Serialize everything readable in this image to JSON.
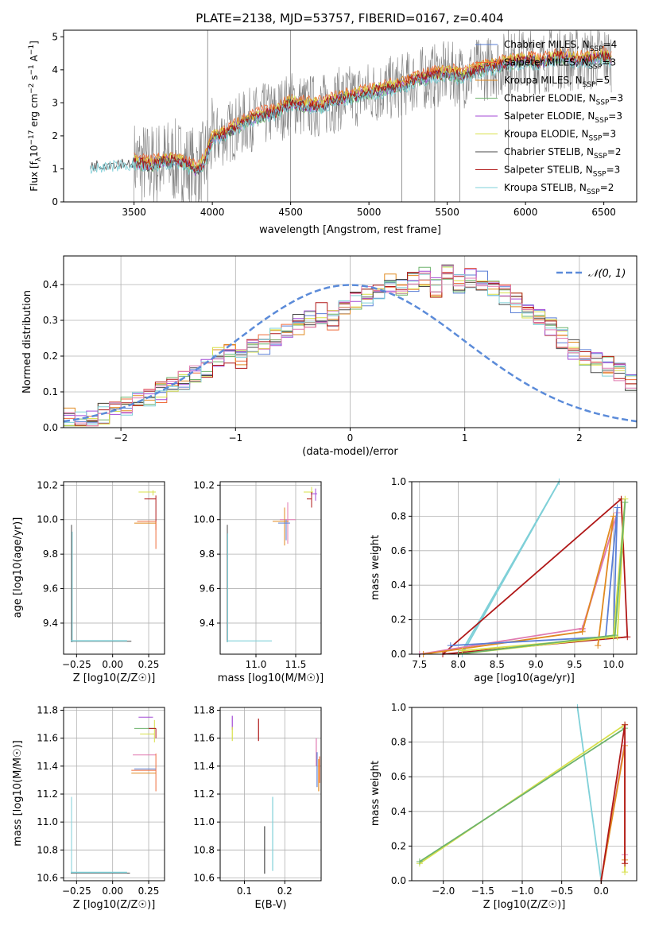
{
  "title": "PLATE=2138, MJD=53757, FIBERID=0167, z=0.404",
  "colors": {
    "chabrier_miles": "#5a7fd6",
    "salpeter_miles": "#ef6b3a",
    "kroupa_miles": "#e08a20",
    "chabrier_elodie": "#6db36b",
    "salpeter_elodie": "#a34ad6",
    "kroupa_elodie": "#d8e04a",
    "chabrier_stelib": "#4a4a4a",
    "salpeter_stelib": "#b01818",
    "kroupa_stelib": "#7fd0d8",
    "data": "#808080",
    "normal": "#5b8bd9",
    "pink": "#e07ab0"
  },
  "chart_data": [
    {
      "id": "spectrum",
      "type": "line",
      "xlabel": "wavelength [Angstrom, rest frame]",
      "ylabel": "Flux [f_λ 10^-17 erg cm^-2 s^-1 A^-1]",
      "ylabel_main": "Flux [f",
      "ylabel_sub": "λ",
      "ylabel_rest": "10",
      "ylabel_exp1": "−17",
      "ylabel_unit": " erg cm",
      "ylabel_exp2": "−2",
      "ylabel_s": " s",
      "ylabel_exp3": "−1",
      "ylabel_A": " A",
      "ylabel_exp4": "−1",
      "ylabel_close": "]",
      "xlim": [
        3050,
        6710
      ],
      "ylim": [
        0,
        5.2
      ],
      "xticks": [
        "3500",
        "4000",
        "4500",
        "5000",
        "5500",
        "6000",
        "6500"
      ],
      "yticks": [
        "0",
        "1",
        "2",
        "3",
        "4",
        "5"
      ],
      "legend_position": "top-right",
      "legend": [
        {
          "prefix": "Chabrier MILES, N",
          "sub": "SSP",
          "suffix": "=4",
          "color": "#5a7fd6"
        },
        {
          "prefix": "Salpeter MILES, N",
          "sub": "SSP",
          "suffix": "=3",
          "color": "#ef6b3a"
        },
        {
          "prefix": "Kroupa MILES, N",
          "sub": "SSP",
          "suffix": "=5",
          "color": "#e08a20"
        },
        {
          "prefix": "Chabrier ELODIE, N",
          "sub": "SSP",
          "suffix": "=3",
          "color": "#6db36b"
        },
        {
          "prefix": "Salpeter ELODIE, N",
          "sub": "SSP",
          "suffix": "=3",
          "color": "#a34ad6"
        },
        {
          "prefix": "Kroupa ELODIE, N",
          "sub": "SSP",
          "suffix": "=3",
          "color": "#d8e04a"
        },
        {
          "prefix": "Chabrier STELIB, N",
          "sub": "SSP",
          "suffix": "=2",
          "color": "#4a4a4a"
        },
        {
          "prefix": "Salpeter STELIB, N",
          "sub": "SSP",
          "suffix": "=3",
          "color": "#b01818"
        },
        {
          "prefix": "Kroupa STELIB, N",
          "sub": "SSP",
          "suffix": "=2",
          "color": "#7fd0d8"
        }
      ],
      "model_x": [
        3220,
        3300,
        3400,
        3500,
        3600,
        3700,
        3800,
        3900,
        3950,
        4000,
        4100,
        4200,
        4300,
        4400,
        4500,
        4600,
        4700,
        4800,
        4900,
        5000,
        5100,
        5200,
        5300,
        5400,
        5500,
        5600,
        5700,
        5800,
        5900,
        6000,
        6100,
        6200,
        6300,
        6400,
        6500,
        6550
      ],
      "model_y": [
        1.1,
        1.15,
        1.2,
        1.2,
        1.1,
        1.25,
        1.2,
        0.95,
        1.2,
        1.9,
        2.1,
        2.4,
        2.6,
        2.7,
        3.0,
        2.9,
        2.9,
        3.1,
        3.2,
        3.3,
        3.4,
        3.5,
        3.7,
        3.8,
        3.9,
        3.8,
        4.0,
        4.1,
        4.2,
        4.3,
        4.2,
        4.4,
        4.3,
        4.3,
        4.4,
        4.3
      ],
      "data_x_range": [
        3500,
        6550
      ],
      "data_spikes": [
        {
          "x": 3970,
          "top": 5.2,
          "bottom": 0
        },
        {
          "x": 4500,
          "top": 5.2,
          "bottom": 0
        },
        {
          "x": 5210,
          "top": 4.0,
          "bottom": 0
        },
        {
          "x": 5420,
          "top": 3.5,
          "bottom": 0
        },
        {
          "x": 5580,
          "top": 4.2,
          "bottom": 0
        },
        {
          "x": 5890,
          "top": 5.2,
          "bottom": 1.0
        }
      ]
    },
    {
      "id": "residuals",
      "type": "area",
      "xlabel": "(data-model)/error",
      "ylabel": "Normed distribution",
      "xlim": [
        -2.5,
        2.5
      ],
      "ylim": [
        0,
        0.48
      ],
      "xticks": [
        "−2",
        "−1",
        "0",
        "1",
        "2"
      ],
      "xtick_values": [
        -2,
        -1,
        0,
        1,
        2
      ],
      "yticks": [
        "0.0",
        "0.1",
        "0.2",
        "0.3",
        "0.4"
      ],
      "ytick_values": [
        0,
        0.1,
        0.2,
        0.3,
        0.4
      ],
      "legend_position": "top-right",
      "normal_label": "𝒩(0, 1)",
      "bin_edges_start": -2.5,
      "bin_width": 0.1,
      "base_hist": [
        0.03,
        0.02,
        0.025,
        0.04,
        0.045,
        0.06,
        0.07,
        0.085,
        0.1,
        0.12,
        0.13,
        0.15,
        0.17,
        0.2,
        0.21,
        0.19,
        0.22,
        0.23,
        0.25,
        0.27,
        0.29,
        0.31,
        0.32,
        0.3,
        0.33,
        0.36,
        0.37,
        0.38,
        0.4,
        0.4,
        0.41,
        0.42,
        0.39,
        0.43,
        0.4,
        0.42,
        0.41,
        0.38,
        0.37,
        0.35,
        0.33,
        0.31,
        0.28,
        0.25,
        0.22,
        0.2,
        0.18,
        0.17,
        0.15,
        0.13
      ]
    },
    {
      "id": "age_vs_Z",
      "type": "scatter",
      "xlabel": "Z [log10(Z/Z☉)]",
      "ylabel": "age [log10(age/yr)]",
      "xlim": [
        -0.34,
        0.36
      ],
      "ylim": [
        9.22,
        10.22
      ],
      "xticks": [
        "−0.25",
        "0.00",
        "0.25"
      ],
      "xtick_values": [
        -0.25,
        0,
        0.25
      ],
      "yticks": [
        "9.4",
        "9.6",
        "9.8",
        "10.0",
        "10.2"
      ],
      "ytick_values": [
        9.4,
        9.6,
        9.8,
        10.0,
        10.2
      ]
    },
    {
      "id": "age_vs_mass",
      "type": "scatter",
      "xlabel": "mass [log10(M/M☉)]",
      "ylabel": "",
      "xlim": [
        10.55,
        11.82
      ],
      "ylim": [
        9.22,
        10.22
      ],
      "xticks": [
        "11.0",
        "11.5"
      ],
      "xtick_values": [
        11.0,
        11.5
      ],
      "yticks": [
        "9.4",
        "9.6",
        "9.8",
        "10.0",
        "10.2"
      ],
      "ytick_values": [
        9.4,
        9.6,
        9.8,
        10.0,
        10.2
      ]
    },
    {
      "id": "weight_vs_age",
      "type": "line",
      "xlabel": "age [log10(age/yr)]",
      "ylabel": "mass weight",
      "xlim": [
        7.4,
        10.3
      ],
      "ylim": [
        0,
        1.0
      ],
      "xticks": [
        "7.5",
        "8.0",
        "8.5",
        "9.0",
        "9.5",
        "10.0"
      ],
      "xtick_values": [
        7.5,
        8.0,
        8.5,
        9.0,
        9.5,
        10.0
      ],
      "yticks": [
        "0.0",
        "0.2",
        "0.4",
        "0.6",
        "0.8",
        "1.0"
      ],
      "ytick_values": [
        0,
        0.2,
        0.4,
        0.6,
        0.8,
        1.0
      ],
      "series": [
        {
          "color": "#7fd0d8",
          "points": [
            [
              8.05,
              0.0
            ],
            [
              9.3,
              1.0
            ],
            [
              8.05,
              0.02
            ]
          ]
        },
        {
          "color": "#b01818",
          "points": [
            [
              7.8,
              0.0
            ],
            [
              10.1,
              0.9
            ],
            [
              10.18,
              0.1
            ],
            [
              7.8,
              0.0
            ]
          ]
        },
        {
          "color": "#e07ab0",
          "points": [
            [
              7.5,
              0.0
            ],
            [
              9.6,
              0.15
            ],
            [
              10.05,
              0.82
            ],
            [
              9.6,
              0.14
            ]
          ]
        },
        {
          "color": "#e08a20",
          "points": [
            [
              7.55,
              0.0
            ],
            [
              9.6,
              0.13
            ],
            [
              10.0,
              0.8
            ],
            [
              9.8,
              0.05
            ]
          ]
        },
        {
          "color": "#5a7fd6",
          "points": [
            [
              7.9,
              0.05
            ],
            [
              9.9,
              0.1
            ],
            [
              10.05,
              0.85
            ],
            [
              10.0,
              0.1
            ]
          ]
        },
        {
          "color": "#d8e04a",
          "points": [
            [
              8.0,
              0.0
            ],
            [
              10.0,
              0.1
            ],
            [
              10.15,
              0.9
            ],
            [
              10.05,
              0.1
            ],
            [
              8.05,
              0.02
            ]
          ]
        },
        {
          "color": "#6db36b",
          "points": [
            [
              8.0,
              0.0
            ],
            [
              10.02,
              0.11
            ],
            [
              10.15,
              0.88
            ]
          ]
        }
      ]
    },
    {
      "id": "mass_vs_Z",
      "type": "scatter",
      "xlabel": "Z [log10(Z/Z☉)]",
      "ylabel": "mass [log10(M/M☉)]",
      "xlim": [
        -0.34,
        0.36
      ],
      "ylim": [
        10.58,
        11.82
      ],
      "xticks": [
        "−0.25",
        "0.00",
        "0.25"
      ],
      "xtick_values": [
        -0.25,
        0,
        0.25
      ],
      "yticks": [
        "10.6",
        "10.8",
        "11.0",
        "11.2",
        "11.4",
        "11.6",
        "11.8"
      ],
      "ytick_values": [
        10.6,
        10.8,
        11.0,
        11.2,
        11.4,
        11.6,
        11.8
      ]
    },
    {
      "id": "mass_vs_ebv",
      "type": "scatter",
      "xlabel": "E(B-V)",
      "ylabel": "",
      "xlim": [
        0.04,
        0.29
      ],
      "ylim": [
        10.58,
        11.82
      ],
      "xticks": [
        "0.1",
        "0.2"
      ],
      "xtick_values": [
        0.1,
        0.2
      ],
      "yticks": [
        "10.6",
        "10.8",
        "11.0",
        "11.2",
        "11.4",
        "11.6",
        "11.8"
      ],
      "ytick_values": [
        10.6,
        10.8,
        11.0,
        11.2,
        11.4,
        11.6,
        11.8
      ]
    },
    {
      "id": "weight_vs_Z",
      "type": "line",
      "xlabel": "Z [log10(Z/Z☉)]",
      "ylabel": "mass weight",
      "xlim": [
        -2.4,
        0.45
      ],
      "ylim": [
        0,
        1.0
      ],
      "xticks": [
        "−2.0",
        "−1.5",
        "−1.0",
        "−0.5",
        "0.0"
      ],
      "xtick_values": [
        -2.0,
        -1.5,
        -1.0,
        -0.5,
        0.0
      ],
      "yticks": [
        "0.0",
        "0.2",
        "0.4",
        "0.6",
        "0.8",
        "1.0"
      ],
      "ytick_values": [
        0,
        0.2,
        0.4,
        0.6,
        0.8,
        1.0
      ],
      "series": [
        {
          "color": "#7fd0d8",
          "points": [
            [
              -0.3,
              1.0
            ],
            [
              0.0,
              0.0
            ]
          ]
        },
        {
          "color": "#d8e04a",
          "points": [
            [
              -2.3,
              0.1
            ],
            [
              0.3,
              0.9
            ],
            [
              0.3,
              0.05
            ]
          ]
        },
        {
          "color": "#6db36b",
          "points": [
            [
              -2.3,
              0.11
            ],
            [
              0.3,
              0.88
            ]
          ]
        },
        {
          "color": "#e07ab0",
          "points": [
            [
              0.0,
              0.0
            ],
            [
              0.3,
              0.8
            ],
            [
              0.3,
              0.15
            ]
          ]
        },
        {
          "color": "#e08a20",
          "points": [
            [
              0.0,
              0.0
            ],
            [
              0.3,
              0.78
            ],
            [
              0.3,
              0.12
            ]
          ]
        },
        {
          "color": "#b01818",
          "points": [
            [
              0.0,
              0.0
            ],
            [
              0.3,
              0.9
            ],
            [
              0.3,
              0.1
            ]
          ]
        }
      ]
    }
  ]
}
